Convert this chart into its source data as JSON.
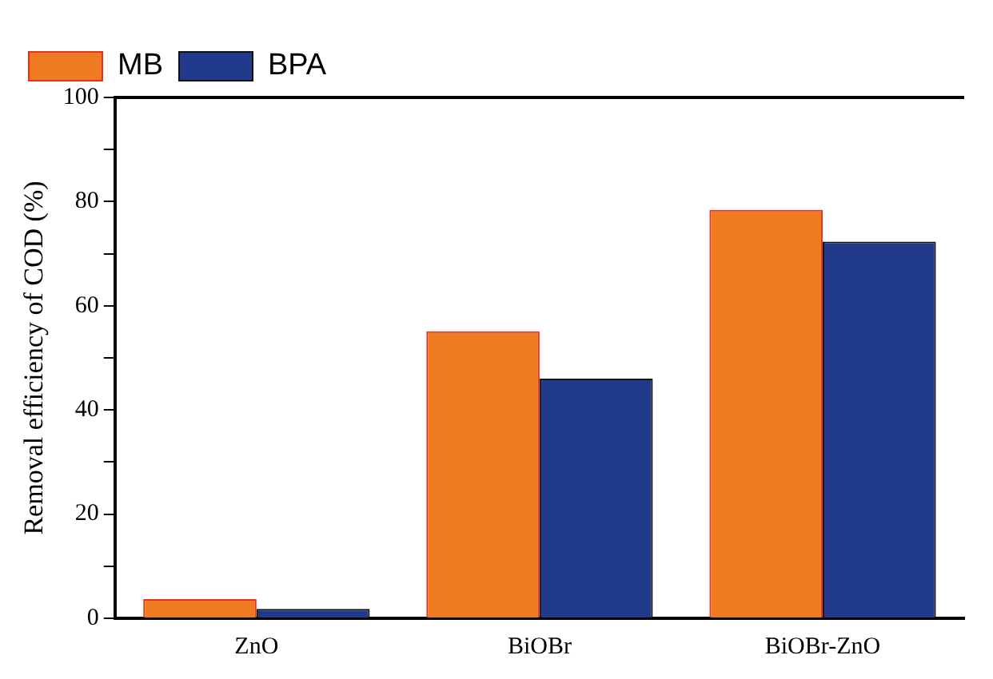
{
  "chart_data": {
    "type": "bar",
    "ylabel": "Removal efficiency of COD (%)",
    "categories": [
      "ZnO",
      "BiOBr",
      "BiOBr-ZnO"
    ],
    "series": [
      {
        "name": "MB",
        "color": "#ee7a22",
        "values": [
          3.7,
          55.1,
          78.4
        ]
      },
      {
        "name": "BPA",
        "color": "#213a8c",
        "values": [
          1.8,
          46.0,
          72.3
        ]
      }
    ],
    "ylim": [
      0,
      100
    ],
    "yticks": [
      0,
      {
        "value": 10,
        "label": null
      },
      20,
      {
        "value": 30,
        "label": null
      },
      40,
      {
        "value": 50,
        "label": null
      },
      60,
      {
        "value": 70,
        "label": null
      },
      80,
      {
        "value": 90,
        "label": null
      },
      100
    ],
    "grid": false,
    "legend": "top left"
  }
}
